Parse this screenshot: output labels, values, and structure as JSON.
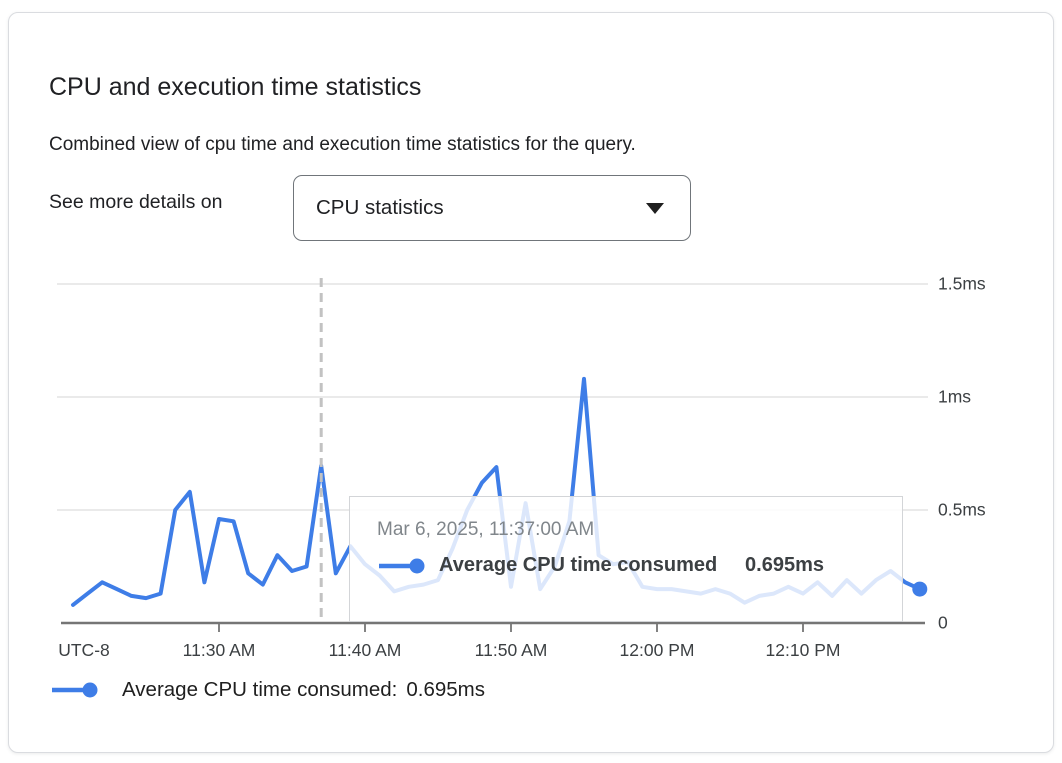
{
  "card": {
    "title": "CPU and execution time statistics",
    "subtitle": "Combined view of cpu time and execution time statistics for the query.",
    "see_more_label": "See more details on",
    "dropdown": {
      "value": "CPU statistics"
    }
  },
  "chart_data": {
    "type": "line",
    "title": "CPU and execution time statistics",
    "xlabel": "",
    "ylabel": "",
    "grid": true,
    "legend_position": "bottom",
    "x_axis": {
      "timezone_label": "UTC-8",
      "tick_labels": [
        "11:30 AM",
        "11:40 AM",
        "11:50 AM",
        "12:00 PM",
        "12:10 PM"
      ]
    },
    "y_axis": {
      "tick_labels": [
        "1.5ms",
        "1ms",
        "0.5ms",
        "0"
      ],
      "tick_values": [
        1.5,
        1.0,
        0.5,
        0
      ],
      "range": [
        0,
        1.5
      ],
      "unit": "ms"
    },
    "series": [
      {
        "name": "Average CPU time consumed",
        "color": "#3e7de7",
        "x": [
          "11:20 AM",
          "11:21 AM",
          "11:22 AM",
          "11:23 AM",
          "11:24 AM",
          "11:25 AM",
          "11:26 AM",
          "11:27 AM",
          "11:28 AM",
          "11:29 AM",
          "11:30 AM",
          "11:31 AM",
          "11:32 AM",
          "11:33 AM",
          "11:34 AM",
          "11:35 AM",
          "11:36 AM",
          "11:37 AM",
          "11:38 AM",
          "11:39 AM",
          "11:40 AM",
          "11:41 AM",
          "11:42 AM",
          "11:43 AM",
          "11:44 AM",
          "11:45 AM",
          "11:46 AM",
          "11:47 AM",
          "11:48 AM",
          "11:49 AM",
          "11:50 AM",
          "11:51 AM",
          "11:52 AM",
          "11:53 AM",
          "11:54 AM",
          "11:55 AM",
          "11:56 AM",
          "11:57 AM",
          "11:58 AM",
          "11:59 AM",
          "12:00 PM",
          "12:01 PM",
          "12:02 PM",
          "12:03 PM",
          "12:04 PM",
          "12:05 PM",
          "12:06 PM",
          "12:07 PM",
          "12:08 PM",
          "12:09 PM",
          "12:10 PM",
          "12:11 PM",
          "12:12 PM",
          "12:13 PM",
          "12:14 PM",
          "12:15 PM",
          "12:16 PM",
          "12:17 PM",
          "12:18 PM"
        ],
        "values": [
          0.08,
          0.13,
          0.18,
          0.15,
          0.12,
          0.11,
          0.13,
          0.5,
          0.58,
          0.18,
          0.46,
          0.45,
          0.22,
          0.17,
          0.3,
          0.23,
          0.25,
          0.695,
          0.22,
          0.34,
          0.26,
          0.21,
          0.14,
          0.16,
          0.17,
          0.19,
          0.33,
          0.5,
          0.62,
          0.69,
          0.16,
          0.53,
          0.15,
          0.25,
          0.45,
          1.08,
          0.3,
          0.26,
          0.27,
          0.16,
          0.15,
          0.15,
          0.14,
          0.13,
          0.15,
          0.13,
          0.09,
          0.12,
          0.13,
          0.16,
          0.13,
          0.18,
          0.12,
          0.19,
          0.13,
          0.19,
          0.23,
          0.18,
          0.15
        ]
      }
    ],
    "highlight": {
      "time": "11:37:00 AM",
      "index": 17,
      "value_ms": 0.695
    }
  },
  "tooltip": {
    "timestamp": "Mar 6, 2025, 11:37:00 AM",
    "series_label": "Average CPU time consumed",
    "value": "0.695ms"
  },
  "legend": {
    "label": "Average CPU time consumed:",
    "value": "0.695ms"
  },
  "colors": {
    "line": "#3e7de7",
    "grid": "#e4e4e4",
    "axis": "#757575",
    "crosshair": "#c2c2c2",
    "tick_text": "#3c4043",
    "muted_text": "#80868b"
  }
}
